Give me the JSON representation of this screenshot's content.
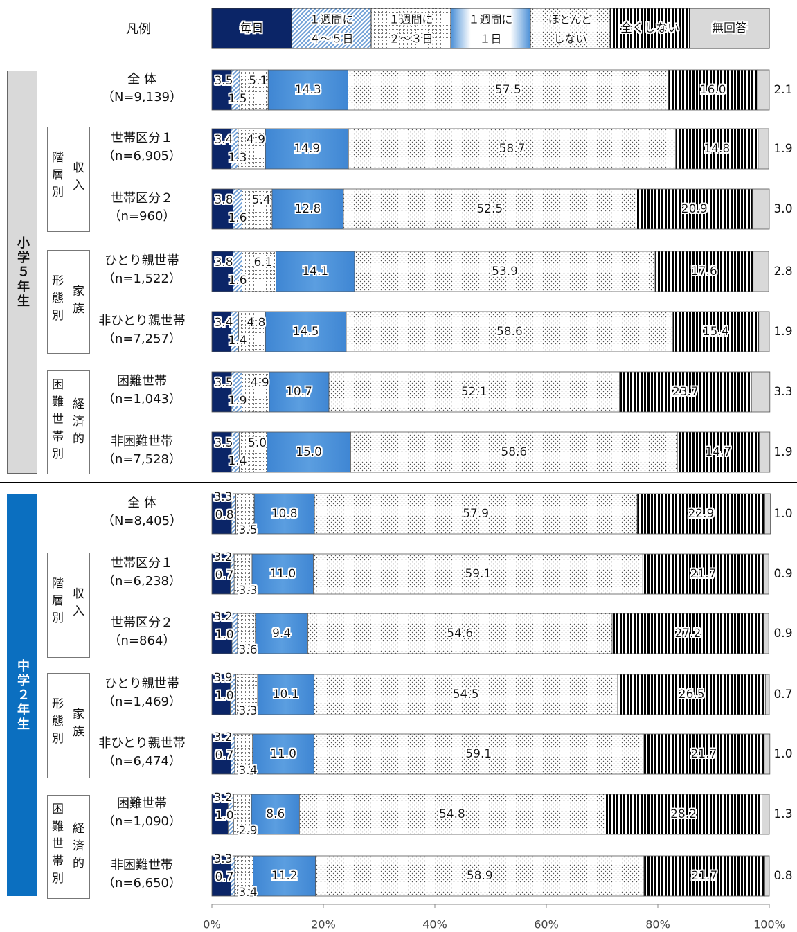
{
  "legend": {
    "title": "凡例",
    "items": [
      {
        "label_lines": [
          "毎日"
        ],
        "pattern": "solid-navy"
      },
      {
        "label_lines": [
          "１週間に",
          "４～５日"
        ],
        "pattern": "diag"
      },
      {
        "label_lines": [
          "１週間に",
          "２～３日"
        ],
        "pattern": "grid"
      },
      {
        "label_lines": [
          "１週間に",
          "１日"
        ],
        "pattern": "blue-grad"
      },
      {
        "label_lines": [
          "ほとんど",
          "しない"
        ],
        "pattern": "dots"
      },
      {
        "label_lines": [
          "全くしない"
        ],
        "pattern": "vstripe"
      },
      {
        "label_lines": [
          "無回答"
        ],
        "pattern": "gray"
      }
    ]
  },
  "groups": {
    "elementary": "小学５年生",
    "junior": "中学２年生",
    "income": [
      "階",
      "層",
      "別",
      "収",
      "入"
    ],
    "family": [
      "形",
      "態",
      "別",
      "家",
      "族"
    ],
    "economic": [
      "困",
      "難",
      "世",
      "帯",
      "別",
      "経",
      "済",
      "的"
    ]
  },
  "colors": {
    "navy": "#0b2567",
    "diag": "#7aa6d9",
    "blue": "#4a8fd6",
    "black": "#000000",
    "gray": "#d9d9d9",
    "elementary_band": "#d9d9d9",
    "junior_band": "#0b6fc0"
  },
  "chart_data": {
    "type": "bar",
    "orientation": "horizontal-stacked-100",
    "xlabel": "",
    "ylabel": "",
    "xlim": [
      0,
      100
    ],
    "x_ticks": [
      "0%",
      "20%",
      "40%",
      "60%",
      "80%",
      "100%"
    ],
    "series": [
      {
        "name": "毎日"
      },
      {
        "name": "１週間に４～５日"
      },
      {
        "name": "１週間に２～３日"
      },
      {
        "name": "１週間に１日"
      },
      {
        "name": "ほとんどしない"
      },
      {
        "name": "全くしない"
      },
      {
        "name": "無回答"
      }
    ],
    "rows": [
      {
        "label": "全 体",
        "n": "（N=9,139）",
        "values": [
          3.5,
          1.5,
          5.1,
          14.3,
          57.5,
          16.0,
          2.1
        ],
        "labels": [
          "3.5",
          "1.5",
          "5.1",
          "14.3",
          "57.5",
          "16.0",
          "2.1"
        ]
      },
      {
        "label": "世帯区分１",
        "n": "（n=6,905）",
        "values": [
          3.4,
          1.3,
          4.9,
          14.9,
          58.7,
          14.8,
          1.9
        ],
        "labels": [
          "3.4",
          "1.3",
          "4.9",
          "14.9",
          "58.7",
          "14.8",
          "1.9"
        ]
      },
      {
        "label": "世帯区分２",
        "n": "（n=960）",
        "values": [
          3.8,
          1.6,
          5.4,
          12.8,
          52.5,
          20.9,
          3.0
        ],
        "labels": [
          "3.8",
          "1.6",
          "5.4",
          "12.8",
          "52.5",
          "20.9",
          "3.0"
        ]
      },
      {
        "label": "ひとり親世帯",
        "n": "（n=1,522）",
        "values": [
          3.8,
          1.6,
          6.1,
          14.1,
          53.9,
          17.6,
          2.8
        ],
        "labels": [
          "3.8",
          "1.6",
          "6.1",
          "14.1",
          "53.9",
          "17.6",
          "2.8"
        ]
      },
      {
        "label": "非ひとり親世帯",
        "n": "（n=7,257）",
        "values": [
          3.4,
          1.4,
          4.8,
          14.5,
          58.6,
          15.4,
          1.9
        ],
        "labels": [
          "3.4",
          "1.4",
          "4.8",
          "14.5",
          "58.6",
          "15.4",
          "1.9"
        ]
      },
      {
        "label": "困難世帯",
        "n": "（n=1,043）",
        "values": [
          3.5,
          1.9,
          4.9,
          10.7,
          52.1,
          23.7,
          3.3
        ],
        "labels": [
          "3.5",
          "1.9",
          "4.9",
          "10.7",
          "52.1",
          "23.7",
          "3.3"
        ]
      },
      {
        "label": "非困難世帯",
        "n": "（n=7,528）",
        "values": [
          3.5,
          1.4,
          5.0,
          15.0,
          58.6,
          14.7,
          1.9
        ],
        "labels": [
          "3.5",
          "1.4",
          "5.0",
          "15.0",
          "58.6",
          "14.7",
          "1.9"
        ]
      },
      {
        "label": "全 体",
        "n": "（N=8,405）",
        "values": [
          3.5,
          0.8,
          3.3,
          10.8,
          57.9,
          22.9,
          1.0
        ],
        "labels": [
          "3.5",
          "0.8",
          "3.3",
          "10.8",
          "57.9",
          "22.9",
          "1.0"
        ]
      },
      {
        "label": "世帯区分１",
        "n": "（n=6,238）",
        "values": [
          3.3,
          0.7,
          3.2,
          11.0,
          59.1,
          21.7,
          0.9
        ],
        "labels": [
          "3.3",
          "0.7",
          "3.2",
          "11.0",
          "59.1",
          "21.7",
          "0.9"
        ]
      },
      {
        "label": "世帯区分２",
        "n": "（n=864）",
        "values": [
          3.6,
          1.0,
          3.2,
          9.4,
          54.6,
          27.2,
          0.9
        ],
        "labels": [
          "3.6",
          "1.0",
          "3.2",
          "9.4",
          "54.6",
          "27.2",
          "0.9"
        ]
      },
      {
        "label": "ひとり親世帯",
        "n": "（n=1,469）",
        "values": [
          3.3,
          1.0,
          3.9,
          10.1,
          54.5,
          26.5,
          0.7
        ],
        "labels": [
          "3.3",
          "1.0",
          "3.9",
          "10.1",
          "54.5",
          "26.5",
          "0.7"
        ]
      },
      {
        "label": "非ひとり親世帯",
        "n": "（n=6,474）",
        "values": [
          3.4,
          0.7,
          3.2,
          11.0,
          59.1,
          21.7,
          1.0
        ],
        "labels": [
          "3.4",
          "0.7",
          "3.2",
          "11.0",
          "59.1",
          "21.7",
          "1.0"
        ]
      },
      {
        "label": "困難世帯",
        "n": "（n=1,090）",
        "values": [
          2.9,
          1.0,
          3.2,
          8.6,
          54.8,
          28.2,
          1.3
        ],
        "labels": [
          "2.9",
          "1.0",
          "3.2",
          "8.6",
          "54.8",
          "28.2",
          "1.3"
        ]
      },
      {
        "label": "非困難世帯",
        "n": "（n=6,650）",
        "values": [
          3.4,
          0.7,
          3.3,
          11.2,
          58.9,
          21.7,
          0.8
        ],
        "labels": [
          "3.4",
          "0.7",
          "3.3",
          "11.2",
          "58.9",
          "21.7",
          "0.8"
        ]
      }
    ]
  }
}
